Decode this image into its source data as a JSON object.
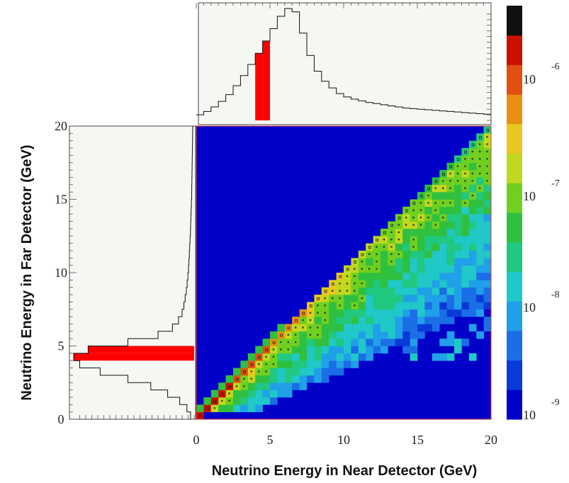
{
  "chart_data": {
    "type": "heatmap",
    "xlabel": "Neutrino Energy in Near Detector (GeV)",
    "ylabel": "Neutrino Energy in Far Detector (GeV)",
    "xlim": [
      0,
      20
    ],
    "ylim": [
      0,
      20
    ],
    "x_ticks": [
      "0",
      "5",
      "10",
      "15",
      "20"
    ],
    "y_ticks": [
      "0",
      "5",
      "10",
      "15",
      "20"
    ],
    "bins": 40,
    "colorbar": {
      "scale": "log",
      "range": [
        1e-09,
        1e-06
      ],
      "labels": [
        {
          "base": "10",
          "exp": "-6"
        },
        {
          "base": "10",
          "exp": "-7"
        },
        {
          "base": "10",
          "exp": "-8"
        },
        {
          "base": "10",
          "exp": "-9"
        }
      ],
      "colors": [
        "#0000c8",
        "#0a3ad8",
        "#1a6ee6",
        "#20a0e8",
        "#20c8c8",
        "#20c880",
        "#30c040",
        "#70d020",
        "#c0d820",
        "#e8c820",
        "#e89010",
        "#e05010",
        "#cc1000",
        "#111111"
      ]
    },
    "near_spectrum_top": {
      "x_bin_edges_start": 0,
      "bin_width": 0.5,
      "values": [
        0.05,
        0.08,
        0.12,
        0.17,
        0.23,
        0.31,
        0.4,
        0.5,
        0.6,
        0.71,
        0.82,
        0.93,
        1.0,
        0.97,
        0.78,
        0.58,
        0.44,
        0.35,
        0.29,
        0.24,
        0.21,
        0.19,
        0.175,
        0.16,
        0.15,
        0.14,
        0.13,
        0.12,
        0.11,
        0.105,
        0.1,
        0.095,
        0.09,
        0.085,
        0.08,
        0.075,
        0.07,
        0.065,
        0.06,
        0.055
      ],
      "highlight_range": [
        4.0,
        5.0
      ],
      "highlight_color": "#ff0000"
    },
    "far_spectrum_left": {
      "y_bin_edges_start": 0,
      "bin_width": 0.5,
      "values": [
        0.03,
        0.06,
        0.12,
        0.22,
        0.36,
        0.55,
        0.78,
        0.95,
        1.0,
        0.88,
        0.55,
        0.3,
        0.18,
        0.13,
        0.1,
        0.085,
        0.075,
        0.065,
        0.058,
        0.052,
        0.047,
        0.043,
        0.04,
        0.037,
        0.034,
        0.031,
        0.029,
        0.027,
        0.025,
        0.023,
        0.021,
        0.02,
        0.019,
        0.018,
        0.017,
        0.016,
        0.015,
        0.014,
        0.013,
        0.012
      ],
      "highlight_range": [
        4.0,
        5.0
      ],
      "highlight_color": "#ff0000"
    }
  }
}
